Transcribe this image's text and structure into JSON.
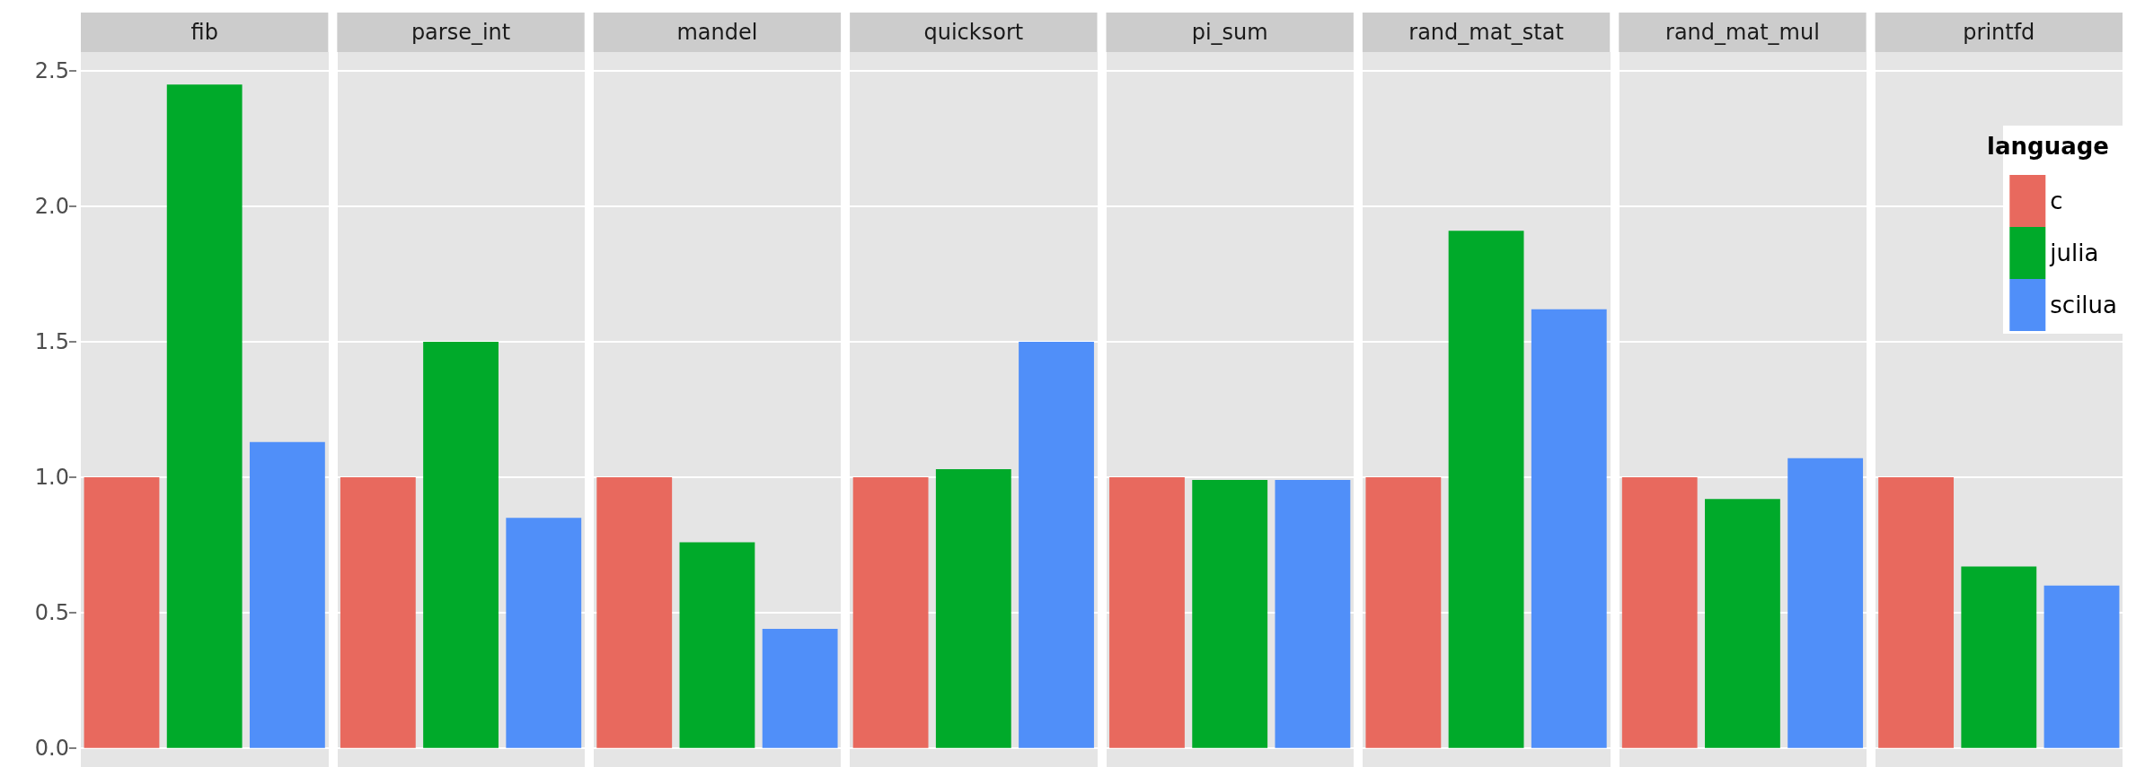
{
  "chart_data": {
    "type": "bar",
    "categories": [
      "fib",
      "parse_int",
      "mandel",
      "quicksort",
      "pi_sum",
      "rand_mat_stat",
      "rand_mat_mul",
      "printfd"
    ],
    "series": [
      {
        "name": "c",
        "color": "#e8695e",
        "values": [
          1.0,
          1.0,
          1.0,
          1.0,
          1.0,
          1.0,
          1.0,
          1.0
        ]
      },
      {
        "name": "julia",
        "color": "#00aa2a",
        "values": [
          2.45,
          1.5,
          0.76,
          1.03,
          0.99,
          1.91,
          0.92,
          0.67
        ]
      },
      {
        "name": "scilua",
        "color": "#508ff9",
        "values": [
          1.13,
          0.85,
          0.44,
          1.5,
          0.99,
          1.62,
          1.07,
          0.6
        ]
      }
    ],
    "ylim": [
      -0.07,
      2.57
    ],
    "yticks": [
      {
        "value": 0,
        "label": "0.0"
      },
      {
        "value": 0.5,
        "label": "0.5"
      },
      {
        "value": 1,
        "label": "1.0"
      },
      {
        "value": 1.5,
        "label": "1.5"
      },
      {
        "value": 2,
        "label": "2.0"
      },
      {
        "value": 2.5,
        "label": "2.5"
      }
    ],
    "grid": true,
    "legend": "top right",
    "legend_title": "language"
  }
}
